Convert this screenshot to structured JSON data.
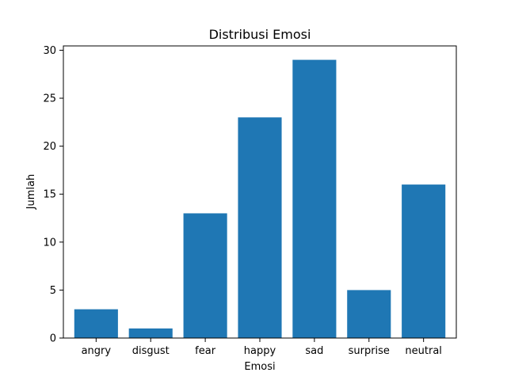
{
  "chart_data": {
    "type": "bar",
    "title": "Distribusi Emosi",
    "xlabel": "Emosi",
    "ylabel": "Jumlah",
    "categories": [
      "angry",
      "disgust",
      "fear",
      "happy",
      "sad",
      "surprise",
      "neutral"
    ],
    "values": [
      3,
      1,
      13,
      23,
      29,
      5,
      16
    ],
    "ylim": [
      0,
      30.45
    ],
    "yticks": [
      0,
      5,
      10,
      15,
      20,
      25,
      30
    ],
    "ytick_labels": [
      "0",
      "5",
      "10",
      "15",
      "20",
      "25",
      "30"
    ],
    "bar_color": "#1f77b4",
    "grid": false,
    "legend": false
  }
}
